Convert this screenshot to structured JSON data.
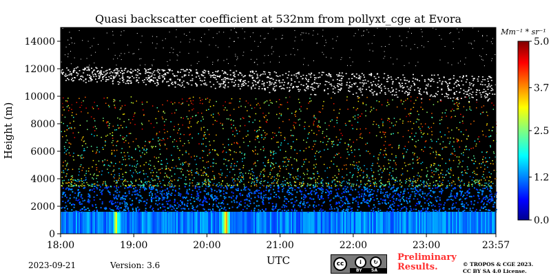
{
  "chart_data": {
    "type": "heatmap",
    "title": "Quasi backscatter coefficient at 532nm from pollyxt_cge at Evora",
    "xlabel": "UTC",
    "ylabel": "Height (m)",
    "xlim": [
      "18:00",
      "23:57"
    ],
    "ylim": [
      0,
      15000
    ],
    "x_ticks": [
      "18:00",
      "19:00",
      "20:00",
      "21:00",
      "22:00",
      "23:00",
      "23:57"
    ],
    "y_ticks": [
      0,
      2000,
      4000,
      6000,
      8000,
      10000,
      12000,
      14000
    ],
    "colorbar": {
      "unit": "Mm⁻¹ * sr⁻¹",
      "range": [
        0.0,
        5.0
      ],
      "ticks": [
        "0.0",
        "1.2",
        "2.5",
        "3.7",
        "5.0"
      ],
      "colormap": "jet"
    },
    "background_color": "#000000",
    "features": {
      "boundary_layer_top_m": 1600,
      "cloud_layer_base_m": 9500,
      "cloud_layer_top_m": 12200,
      "cloud_color": "#ffffff",
      "enhanced_columns_hours": [
        18.75,
        20.25
      ]
    },
    "grid": false
  },
  "footer": {
    "date": "2023-09-21",
    "version": "Version: 3.6",
    "license_badge": {
      "cc": "cc",
      "by": "BY",
      "sa": "SA"
    },
    "preliminary_line1": "Preliminary",
    "preliminary_line2": "Results.",
    "license_line1": "© TROPOS & CGE 2023.",
    "license_line2": "CC BY SA 4.0 License."
  },
  "colors": {
    "preliminary": "#ff3030"
  }
}
